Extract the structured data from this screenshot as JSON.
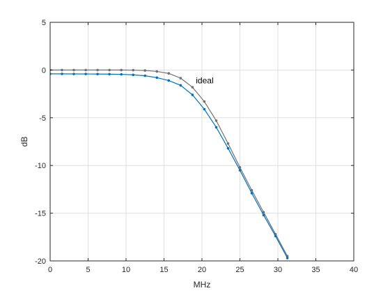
{
  "chart_data": {
    "type": "line",
    "title": "",
    "xlabel": "MHz",
    "ylabel": "dB",
    "xlim": [
      0,
      40
    ],
    "ylim": [
      -20,
      5
    ],
    "xticks": [
      0,
      5,
      10,
      15,
      20,
      25,
      30,
      35,
      40
    ],
    "yticks": [
      -20,
      -15,
      -10,
      -5,
      0,
      5
    ],
    "grid": true,
    "annotations": [
      {
        "text": "ideal",
        "x": 19.2,
        "y": -1.1
      }
    ],
    "series": [
      {
        "name": "",
        "color": "#707070",
        "x": [
          0,
          1.56,
          3.12,
          4.69,
          6.25,
          7.81,
          9.38,
          10.94,
          12.5,
          14.06,
          15.62,
          17.19,
          18.75,
          20.31,
          21.88,
          23.44,
          25.0,
          26.56,
          28.12,
          29.69,
          31.25
        ],
        "y": [
          0,
          0,
          0,
          0,
          0,
          0,
          0,
          -0.01,
          -0.05,
          -0.15,
          -0.35,
          -0.85,
          -1.8,
          -3.3,
          -5.3,
          -7.7,
          -10.2,
          -12.6,
          -14.9,
          -17.2,
          -19.5
        ]
      },
      {
        "name": "",
        "color": "#0072BD",
        "x": [
          0,
          1.56,
          3.12,
          4.69,
          6.25,
          7.81,
          9.38,
          10.94,
          12.5,
          14.06,
          15.62,
          17.19,
          18.75,
          20.31,
          21.88,
          23.44,
          25.0,
          26.56,
          28.12,
          29.69,
          31.25
        ],
        "y": [
          -0.4,
          -0.4,
          -0.41,
          -0.41,
          -0.42,
          -0.43,
          -0.45,
          -0.5,
          -0.6,
          -0.8,
          -1.1,
          -1.6,
          -2.6,
          -4.1,
          -6.0,
          -8.2,
          -10.5,
          -12.9,
          -15.2,
          -17.4,
          -19.7
        ]
      }
    ]
  }
}
